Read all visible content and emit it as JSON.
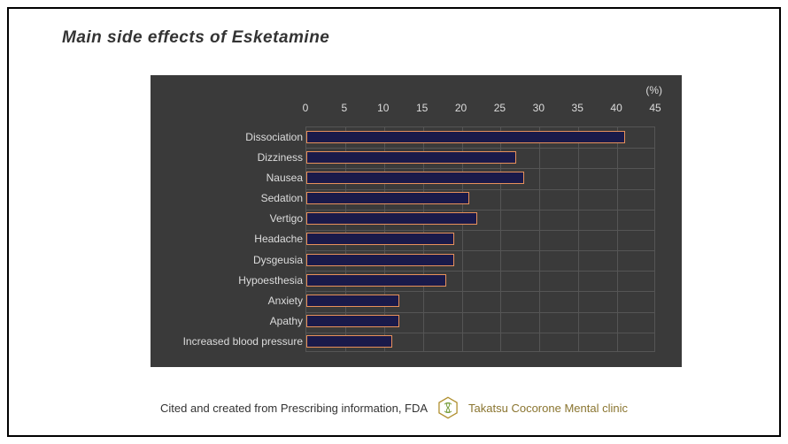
{
  "title": "Main side effects of Esketamine",
  "chart": {
    "type": "bar",
    "orientation": "horizontal",
    "unit_label": "(%)",
    "xlim": [
      0,
      45
    ],
    "xtick_step": 5,
    "xticks": [
      0,
      5,
      10,
      15,
      20,
      25,
      30,
      35,
      40,
      45
    ],
    "background_color": "#3a3a3a",
    "grid_color": "#555555",
    "bar_fill": "#1a1a4a",
    "bar_border": "#e8915a",
    "text_color": "#dddddd",
    "label_fontsize": 12,
    "categories": [
      "Dissociation",
      "Dizziness",
      "Nausea",
      "Sedation",
      "Vertigo",
      "Headache",
      "Dysgeusia",
      "Hypoesthesia",
      "Anxiety",
      "Apathy",
      "Increased blood pressure"
    ],
    "values": [
      41,
      27,
      28,
      21,
      22,
      19,
      19,
      18,
      12,
      12,
      11
    ]
  },
  "footer": {
    "citation": "Cited and created from Prescribing information, FDA",
    "clinic_name": "Takatsu Cocorone Mental clinic",
    "clinic_color": "#8a7530"
  }
}
